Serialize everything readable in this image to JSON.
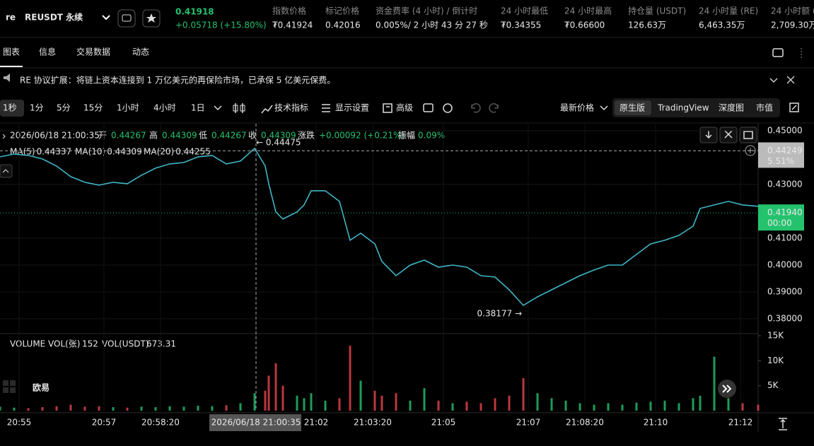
{
  "header": {
    "symbol_prefix": "re",
    "symbol": "REUSDT 永续",
    "last_price": "0.41918",
    "change": "+0.05718 (+15.80%)",
    "stats": [
      {
        "label": "指数价格",
        "value": "₮0.41924"
      },
      {
        "label": "标记价格",
        "value": "0.42016"
      },
      {
        "label": "资金费率 (4 小时) / 倒计时",
        "value": "0.005%",
        "value_suffix": " / 2 小时 43 分 27 秒"
      },
      {
        "label": "24 小时最低",
        "value": "₮0.34355"
      },
      {
        "label": "24 小时最高",
        "value": "₮0.66600"
      },
      {
        "label": "持仓量 (USDT)",
        "value": "126.63万"
      },
      {
        "label": "24 小时量 (RE)",
        "value": "6,463.35万"
      },
      {
        "label": "24 小时额 (",
        "value": "2,709.30万"
      }
    ]
  },
  "tabs": [
    "图表",
    "信息",
    "交易数据",
    "动态"
  ],
  "notice": "RE 协议扩展：将链上资本连接到 1 万亿美元的再保险市场，已承保 5 亿美元保费。",
  "intervals": [
    "1秒",
    "1分",
    "5分",
    "15分",
    "1小时",
    "4小时",
    "1日"
  ],
  "tools": [
    "技术指标",
    "显示设置",
    "高级"
  ],
  "price_type": "最新价格",
  "views": [
    "原生版",
    "TradingView",
    "深度图",
    "市值"
  ],
  "ohlc": {
    "date": "2026/06/18 21:00:35",
    "open_label": "开",
    "open": "0.44267",
    "high_label": "高",
    "high": "0.44309",
    "low_label": "低",
    "low": "0.44267",
    "close_label": "收",
    "close": "0.44309",
    "change_label": "涨跌",
    "change": "+0.00092 (+0.21%)",
    "amp_label": "振幅",
    "amp": "0.09%"
  },
  "ma": [
    {
      "name": "MA(5)",
      "value": "0.44337",
      "color": "#e8a33d"
    },
    {
      "name": "MA(10)",
      "value": "0.44309",
      "color": "#d0508a"
    },
    {
      "name": "MA(20)",
      "value": "0.44255",
      "color": "#4fa8d8"
    }
  ],
  "volume_legend": {
    "name": "VOLUME",
    "vol_label": "VOL(张)",
    "vol": "152",
    "usdt_label": "VOL(USDT)",
    "usdt": "673.31"
  },
  "watermark": "欧易",
  "chart_data": {
    "type": "line",
    "xlim": [
      "20:54:33",
      "21:12:25"
    ],
    "xticks": [
      "20:55",
      "20:57",
      "20:58:20",
      "21:02",
      "21:03:20",
      "21:05",
      "21:07",
      "21:08:20",
      "21:10",
      "21:12"
    ],
    "ylim": [
      0.375,
      0.4526
    ],
    "yticks": [
      {
        "value": 0.38,
        "label": "0.38000"
      },
      {
        "value": 0.39,
        "label": "0.39000"
      },
      {
        "value": 0.4,
        "label": "0.40000"
      },
      {
        "value": 0.41,
        "label": "0.41000"
      },
      {
        "value": 0.43,
        "label": "0.43000"
      },
      {
        "value": 0.45,
        "label": "0.45000"
      }
    ],
    "grid": true,
    "x": [
      "20:54:33",
      "20:54:53",
      "20:55:13",
      "20:55:33",
      "20:55:53",
      "20:56:13",
      "20:56:33",
      "20:56:53",
      "20:57:13",
      "20:57:33",
      "20:57:53",
      "20:58:13",
      "20:58:33",
      "20:58:53",
      "20:59:13",
      "20:59:33",
      "20:59:53",
      "21:00:13",
      "21:00:33",
      "21:00:48",
      "21:00:53",
      "21:01:03",
      "21:01:13",
      "21:01:33",
      "21:01:43",
      "21:01:53",
      "21:02:13",
      "21:02:33",
      "21:02:48",
      "21:03:03",
      "21:03:23",
      "21:03:33",
      "21:03:53",
      "21:04:13",
      "21:04:33",
      "21:04:53",
      "21:05:13",
      "21:05:33",
      "21:05:53",
      "21:06:13",
      "21:06:33",
      "21:06:53",
      "21:07:13",
      "21:07:33",
      "21:07:53",
      "21:08:13",
      "21:08:33",
      "21:08:53",
      "21:09:13",
      "21:09:33",
      "21:09:53",
      "21:10:13",
      "21:10:33",
      "21:10:53",
      "21:11:03",
      "21:11:23",
      "21:11:43",
      "21:12:03",
      "21:12:25"
    ],
    "series": [
      {
        "name": "price",
        "color": "#3fb6c6",
        "values": [
          0.44026,
          0.44132,
          0.44079,
          0.43947,
          0.43684,
          0.43289,
          0.43079,
          0.42974,
          0.43079,
          0.43026,
          0.43342,
          0.43605,
          0.43763,
          0.43816,
          0.44026,
          0.44079,
          0.43763,
          0.43868,
          0.44342,
          0.43684,
          0.43026,
          0.41974,
          0.41711,
          0.41974,
          0.42237,
          0.42763,
          0.42763,
          0.42368,
          0.40921,
          0.41184,
          0.40789,
          0.40132,
          0.39605,
          0.4,
          0.40184,
          0.39921,
          0.4,
          0.39921,
          0.39605,
          0.39553,
          0.39079,
          0.385,
          0.38816,
          0.39079,
          0.39342,
          0.39605,
          0.39816,
          0.4,
          0.4,
          0.40395,
          0.40789,
          0.40921,
          0.41105,
          0.41447,
          0.42105,
          0.42237,
          0.42368,
          0.42237,
          0.42184
        ]
      }
    ],
    "high_label": "← 0.44475",
    "low_label": "0.38177 →",
    "crosshair": {
      "price": 0.44249,
      "pct": "5.51%",
      "time": "2026/06/18 21:00:35"
    },
    "last": {
      "value": 0.4194,
      "label": "0.41940",
      "countdown": "00:00"
    },
    "up_color": "#25c26e",
    "down_color": "#e8464f",
    "volume": {
      "ylim": [
        0,
        15000
      ],
      "yticks": [
        {
          "value": 5000,
          "label": "5K"
        },
        {
          "value": 10000,
          "label": "10K"
        },
        {
          "value": 15000,
          "label": "15K"
        }
      ],
      "values": [
        800,
        600,
        500,
        700,
        900,
        1200,
        800,
        900,
        700,
        600,
        800,
        700,
        900,
        800,
        1000,
        900,
        1100,
        1500,
        3500,
        4000,
        7000,
        9500,
        5000,
        3000,
        2500,
        3500,
        2000,
        2500,
        13000,
        6000,
        4000,
        3000,
        3500,
        2000,
        4500,
        2000,
        1500,
        1800,
        1500,
        2500,
        3000,
        6500,
        3500,
        2500,
        2000,
        1500,
        1200,
        1500,
        1200,
        1600,
        1800,
        2000,
        1500,
        2500,
        3000,
        10800,
        2500,
        1500,
        1200
      ]
    }
  }
}
